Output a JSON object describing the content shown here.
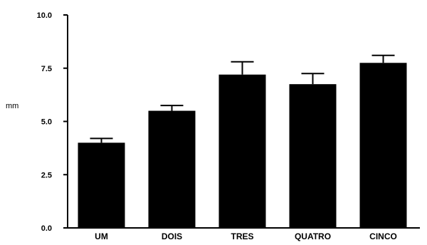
{
  "chart_data": {
    "type": "bar",
    "categories": [
      "UM",
      "DOIS",
      "TRES",
      "QUATRO",
      "CINCO"
    ],
    "values": [
      4.0,
      5.5,
      7.2,
      6.75,
      7.75
    ],
    "error_upper": [
      4.2,
      5.75,
      7.8,
      7.25,
      8.1
    ],
    "title": "",
    "xlabel": "",
    "ylabel": "mm",
    "ylim": [
      0,
      10
    ],
    "yticks": [
      "0.0",
      "2.5",
      "5.0",
      "7.5",
      "10.0"
    ],
    "grid": false,
    "legend": "none",
    "bar_color": "#000000"
  }
}
